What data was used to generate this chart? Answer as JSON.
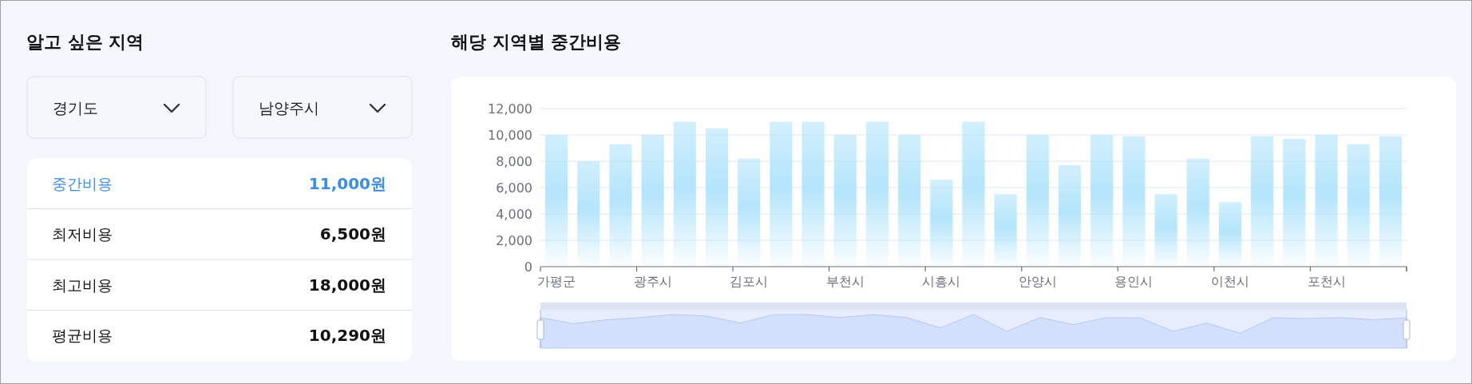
{
  "chart_data": [
    {
      "type": "other",
      "title": "알고 싶은 지역",
      "annotations": [
        "경기도",
        "남양주시"
      ],
      "categories": [
        "중간비용",
        "최저비용",
        "최고비용",
        "평균비용"
      ],
      "value_labels": [
        "11,000원",
        "6,500원",
        "18,000원",
        "10,290원"
      ]
    },
    {
      "type": "bar",
      "title": "해당 지역별 중간비용",
      "categories": [
        "가평군",
        null,
        null,
        "광주시",
        null,
        null,
        "김포시",
        null,
        null,
        "부천시",
        null,
        null,
        "시흥시",
        null,
        null,
        "안양시",
        null,
        null,
        "용인시",
        null,
        null,
        "이천시",
        null,
        null,
        "포천시",
        null,
        null
      ],
      "values": [
        10000,
        8000,
        9300,
        10000,
        11000,
        10500,
        8200,
        11000,
        11000,
        10000,
        11000,
        10000,
        6600,
        11000,
        5500,
        10000,
        7700,
        10000,
        9900,
        5500,
        8200,
        4900,
        9900,
        9700,
        10000,
        9300,
        9900
      ],
      "color": "#b3e5fc",
      "ylim": [
        0,
        12000
      ],
      "yticks": [
        0,
        {
          "value": 2000,
          "label": "2,000"
        },
        {
          "value": 4000,
          "label": "4,000"
        },
        {
          "value": 6000,
          "label": "6,000"
        },
        {
          "value": 8000,
          "label": "8,000"
        },
        {
          "value": 10000,
          "label": "10,000"
        },
        {
          "value": 12000,
          "label": "12,000"
        }
      ],
      "grid": "y"
    }
  ]
}
